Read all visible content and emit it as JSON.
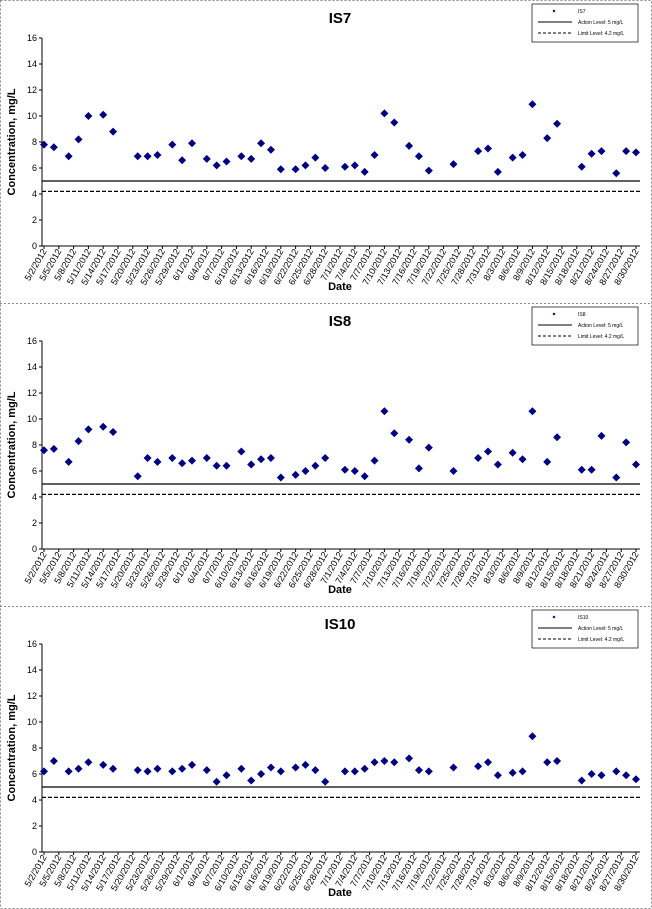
{
  "chart_data": [
    {
      "type": "scatter",
      "title": "IS7",
      "x_label": "Date",
      "y_label": "Concentration, mg/L",
      "x": [
        "5/2/2012",
        "5/4/2012",
        "5/7/2012",
        "5/9/2012",
        "5/11/2012",
        "5/14/2012",
        "5/16/2012",
        "5/21/2012",
        "5/23/2012",
        "5/25/2012",
        "5/28/2012",
        "5/30/2012",
        "6/1/2012",
        "6/4/2012",
        "6/6/2012",
        "6/8/2012",
        "6/11/2012",
        "6/13/2012",
        "6/15/2012",
        "6/17/2012",
        "6/19/2012",
        "6/22/2012",
        "6/24/2012",
        "6/26/2012",
        "6/28/2012",
        "7/2/2012",
        "7/4/2012",
        "7/6/2012",
        "7/8/2012",
        "7/10/2012",
        "7/12/2012",
        "7/15/2012",
        "7/17/2012",
        "7/19/2012",
        "7/24/2012",
        "7/29/2012",
        "7/31/2012",
        "8/2/2012",
        "8/5/2012",
        "8/7/2012",
        "8/9/2012",
        "8/12/2012",
        "8/14/2012",
        "8/19/2012",
        "8/21/2012",
        "8/23/2012",
        "8/26/2012",
        "8/28/2012",
        "8/30/2012"
      ],
      "series": [
        {
          "name": "IS7",
          "color": "#000080",
          "values": [
            7.8,
            7.6,
            6.9,
            8.2,
            10.0,
            10.1,
            8.8,
            6.9,
            6.9,
            7.0,
            7.8,
            6.6,
            7.9,
            6.7,
            6.2,
            6.5,
            6.9,
            6.7,
            7.9,
            7.4,
            5.9,
            5.9,
            6.2,
            6.8,
            6.0,
            6.1,
            6.2,
            5.7,
            7.0,
            10.2,
            9.5,
            7.7,
            6.9,
            5.8,
            6.3,
            7.3,
            7.5,
            5.7,
            6.8,
            7.0,
            10.9,
            8.3,
            9.4,
            6.1,
            7.1,
            7.3,
            5.6,
            7.3,
            7.2
          ]
        }
      ],
      "reference_lines": [
        {
          "name": "Action Level: 5 mg/L",
          "value": 5,
          "style": "solid"
        },
        {
          "name": "Limit Level: 4.2 mg/L",
          "value": 4.2,
          "style": "dashed"
        }
      ],
      "xlim": [
        "5/2/2012",
        "8/30/2012"
      ],
      "xticks": [
        "5/2/2012",
        "5/5/2012",
        "5/8/2012",
        "5/11/2012",
        "5/14/2012",
        "5/17/2012",
        "5/20/2012",
        "5/23/2012",
        "5/26/2012",
        "5/29/2012",
        "6/1/2012",
        "6/4/2012",
        "6/7/2012",
        "6/10/2012",
        "6/13/2012",
        "6/16/2012",
        "6/19/2012",
        "6/22/2012",
        "6/25/2012",
        "6/28/2012",
        "7/1/2012",
        "7/4/2012",
        "7/7/2012",
        "7/10/2012",
        "7/13/2012",
        "7/16/2012",
        "7/19/2012",
        "7/22/2012",
        "7/25/2012",
        "7/28/2012",
        "7/31/2012",
        "8/3/2012",
        "8/6/2012",
        "8/9/2012",
        "8/12/2012",
        "8/15/2012",
        "8/18/2012",
        "8/21/2012",
        "8/24/2012",
        "8/27/2012",
        "8/30/2012"
      ],
      "ylim": [
        0,
        16
      ],
      "yticks": [
        0,
        2,
        4,
        6,
        8,
        10,
        12,
        14,
        16
      ]
    },
    {
      "type": "scatter",
      "title": "IS8",
      "x_label": "Date",
      "y_label": "Concentration, mg/L",
      "x": [
        "5/2/2012",
        "5/4/2012",
        "5/7/2012",
        "5/9/2012",
        "5/11/2012",
        "5/14/2012",
        "5/16/2012",
        "5/21/2012",
        "5/23/2012",
        "5/25/2012",
        "5/28/2012",
        "5/30/2012",
        "6/1/2012",
        "6/4/2012",
        "6/6/2012",
        "6/8/2012",
        "6/11/2012",
        "6/13/2012",
        "6/15/2012",
        "6/17/2012",
        "6/19/2012",
        "6/22/2012",
        "6/24/2012",
        "6/26/2012",
        "6/28/2012",
        "7/2/2012",
        "7/4/2012",
        "7/6/2012",
        "7/8/2012",
        "7/10/2012",
        "7/12/2012",
        "7/15/2012",
        "7/17/2012",
        "7/19/2012",
        "7/24/2012",
        "7/29/2012",
        "7/31/2012",
        "8/2/2012",
        "8/5/2012",
        "8/7/2012",
        "8/9/2012",
        "8/12/2012",
        "8/14/2012",
        "8/19/2012",
        "8/21/2012",
        "8/23/2012",
        "8/26/2012",
        "8/28/2012",
        "8/30/2012"
      ],
      "series": [
        {
          "name": "IS8",
          "color": "#000080",
          "values": [
            7.6,
            7.7,
            6.7,
            8.3,
            9.2,
            9.4,
            9.0,
            5.6,
            7.0,
            6.7,
            7.0,
            6.6,
            6.8,
            7.0,
            6.4,
            6.4,
            7.5,
            6.5,
            6.9,
            7.0,
            5.5,
            5.7,
            6.0,
            6.4,
            7.0,
            6.1,
            6.0,
            5.6,
            6.8,
            10.6,
            8.9,
            8.4,
            6.2,
            7.8,
            6.0,
            7.0,
            7.5,
            6.5,
            7.4,
            6.9,
            10.6,
            6.7,
            8.6,
            6.1,
            6.1,
            8.7,
            5.5,
            8.2,
            6.5
          ]
        }
      ],
      "reference_lines": [
        {
          "name": "Action Level: 5 mg/L",
          "value": 5,
          "style": "solid"
        },
        {
          "name": "Limit Level: 4.2 mg/L",
          "value": 4.2,
          "style": "dashed"
        }
      ],
      "xlim": [
        "5/2/2012",
        "8/30/2012"
      ],
      "xticks": [
        "5/2/2012",
        "5/5/2012",
        "5/8/2012",
        "5/11/2012",
        "5/14/2012",
        "5/17/2012",
        "5/20/2012",
        "5/23/2012",
        "5/26/2012",
        "5/29/2012",
        "6/1/2012",
        "6/4/2012",
        "6/7/2012",
        "6/10/2012",
        "6/13/2012",
        "6/16/2012",
        "6/19/2012",
        "6/22/2012",
        "6/25/2012",
        "6/28/2012",
        "7/1/2012",
        "7/4/2012",
        "7/7/2012",
        "7/10/2012",
        "7/13/2012",
        "7/16/2012",
        "7/19/2012",
        "7/22/2012",
        "7/25/2012",
        "7/28/2012",
        "7/31/2012",
        "8/3/2012",
        "8/6/2012",
        "8/9/2012",
        "8/12/2012",
        "8/15/2012",
        "8/18/2012",
        "8/21/2012",
        "8/24/2012",
        "8/27/2012",
        "8/30/2012"
      ],
      "ylim": [
        0,
        16
      ],
      "yticks": [
        0,
        2,
        4,
        6,
        8,
        10,
        12,
        14,
        16
      ]
    },
    {
      "type": "scatter",
      "title": "IS10",
      "x_label": "Date",
      "y_label": "Concentration, mg/L",
      "x": [
        "5/2/2012",
        "5/4/2012",
        "5/7/2012",
        "5/9/2012",
        "5/11/2012",
        "5/14/2012",
        "5/16/2012",
        "5/21/2012",
        "5/23/2012",
        "5/25/2012",
        "5/28/2012",
        "5/30/2012",
        "6/1/2012",
        "6/4/2012",
        "6/6/2012",
        "6/8/2012",
        "6/11/2012",
        "6/13/2012",
        "6/15/2012",
        "6/17/2012",
        "6/19/2012",
        "6/22/2012",
        "6/24/2012",
        "6/26/2012",
        "6/28/2012",
        "7/2/2012",
        "7/4/2012",
        "7/6/2012",
        "7/8/2012",
        "7/10/2012",
        "7/12/2012",
        "7/15/2012",
        "7/17/2012",
        "7/19/2012",
        "7/24/2012",
        "7/29/2012",
        "7/31/2012",
        "8/2/2012",
        "8/5/2012",
        "8/7/2012",
        "8/9/2012",
        "8/12/2012",
        "8/14/2012",
        "8/19/2012",
        "8/21/2012",
        "8/23/2012",
        "8/26/2012",
        "8/28/2012",
        "8/30/2012"
      ],
      "series": [
        {
          "name": "IS10",
          "color": "#000080",
          "values": [
            6.2,
            7.0,
            6.2,
            6.4,
            6.9,
            6.7,
            6.4,
            6.3,
            6.2,
            6.4,
            6.2,
            6.4,
            6.7,
            6.3,
            5.4,
            5.9,
            6.4,
            5.5,
            6.0,
            6.5,
            6.2,
            6.5,
            6.7,
            6.3,
            5.4,
            6.2,
            6.2,
            6.4,
            6.9,
            7.0,
            6.9,
            7.2,
            6.3,
            6.2,
            6.5,
            6.6,
            6.9,
            5.9,
            6.1,
            6.2,
            8.9,
            6.9,
            7.0,
            5.5,
            6.0,
            5.9,
            6.2,
            5.9,
            5.6
          ]
        }
      ],
      "reference_lines": [
        {
          "name": "Action Level: 5 mg/L",
          "value": 5,
          "style": "solid"
        },
        {
          "name": "Limit Level: 4.2 mg/L",
          "value": 4.2,
          "style": "dashed"
        }
      ],
      "xlim": [
        "5/2/2012",
        "8/30/2012"
      ],
      "xticks": [
        "5/2/2012",
        "5/5/2012",
        "5/8/2012",
        "5/11/2012",
        "5/14/2012",
        "5/17/2012",
        "5/20/2012",
        "5/23/2012",
        "5/26/2012",
        "5/29/2012",
        "6/1/2012",
        "6/4/2012",
        "6/7/2012",
        "6/10/2012",
        "6/13/2012",
        "6/16/2012",
        "6/19/2012",
        "6/22/2012",
        "6/25/2012",
        "6/28/2012",
        "7/1/2012",
        "7/4/2012",
        "7/7/2012",
        "7/10/2012",
        "7/13/2012",
        "7/16/2012",
        "7/19/2012",
        "7/22/2012",
        "7/25/2012",
        "7/28/2012",
        "7/31/2012",
        "8/3/2012",
        "8/6/2012",
        "8/9/2012",
        "8/12/2012",
        "8/15/2012",
        "8/18/2012",
        "8/21/2012",
        "8/24/2012",
        "8/27/2012",
        "8/30/2012"
      ],
      "ylim": [
        0,
        16
      ],
      "yticks": [
        0,
        2,
        4,
        6,
        8,
        10,
        12,
        14,
        16
      ]
    }
  ]
}
